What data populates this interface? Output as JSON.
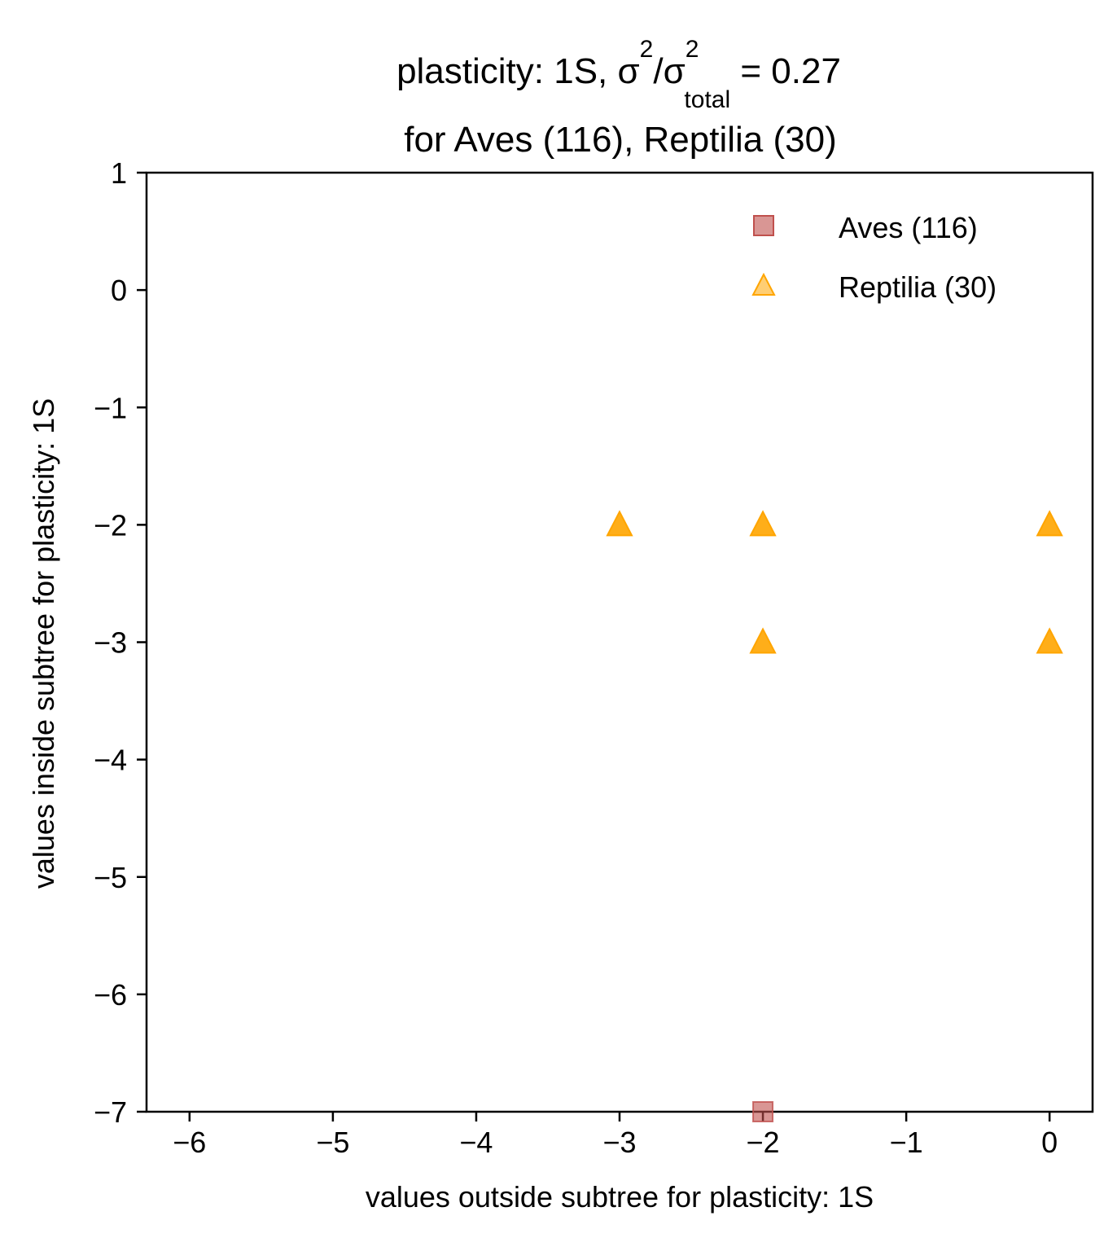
{
  "chart_data": {
    "type": "scatter",
    "title_line1": {
      "prefix": "plasticity: 1S, σ",
      "sup1": "2",
      "mid": "/σ",
      "sup2": "2",
      "sub": "total",
      "suffix": " =  0.27"
    },
    "title_line2": "for Aves (116), Reptilia (30)",
    "xlabel": "values outside subtree for plasticity: 1S",
    "ylabel": "values inside subtree for plasticity: 1S",
    "xlim": [
      -6.3,
      0.3
    ],
    "ylim": [
      -7,
      1
    ],
    "xticks": [
      -6,
      -5,
      -4,
      -3,
      -2,
      -1,
      0
    ],
    "yticks": [
      1,
      0,
      -1,
      -2,
      -3,
      -4,
      -5,
      -6,
      -7
    ],
    "xtick_labels": [
      "−6",
      "−5",
      "−4",
      "−3",
      "−2",
      "−1",
      "0"
    ],
    "ytick_labels": [
      "1",
      "0",
      "−1",
      "−2",
      "−3",
      "−4",
      "−5",
      "−6",
      "−7"
    ],
    "legend_position": "upper right",
    "grid": false,
    "series": [
      {
        "name": "Aves (116)",
        "marker": "square",
        "color": "#c0504d",
        "points": [
          {
            "x": -2,
            "y": -7
          }
        ]
      },
      {
        "name": "Reptilia (30)",
        "marker": "triangle",
        "color": "#ffa500",
        "points": [
          {
            "x": -3,
            "y": -2
          },
          {
            "x": -2,
            "y": -2
          },
          {
            "x": 0,
            "y": -2
          },
          {
            "x": -2,
            "y": -3
          },
          {
            "x": 0,
            "y": -3
          }
        ]
      }
    ]
  }
}
